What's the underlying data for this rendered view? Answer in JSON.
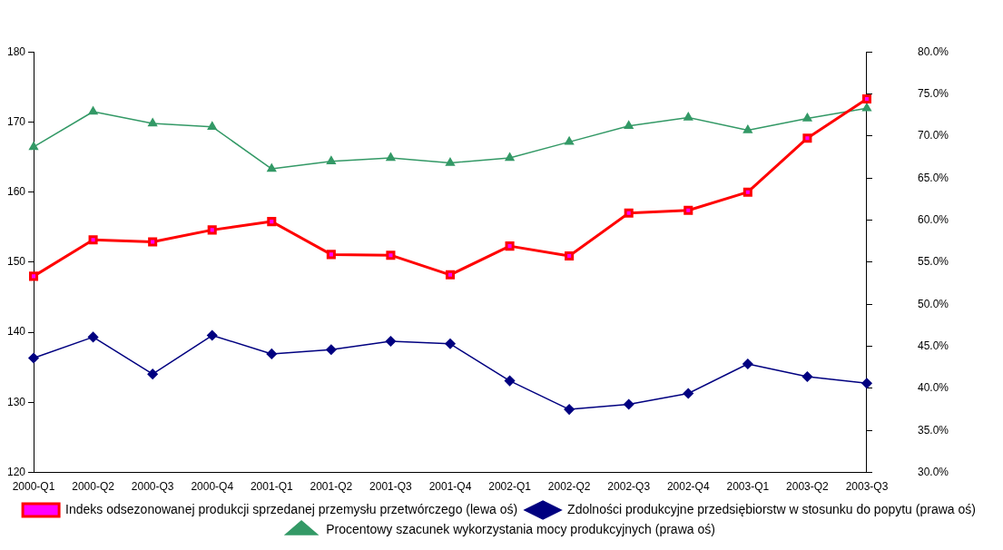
{
  "chart_data": {
    "type": "line",
    "categories": [
      "2000-Q1",
      "2000-Q2",
      "2000-Q3",
      "2000-Q4",
      "2001-Q1",
      "2001-Q2",
      "2001-Q3",
      "2001-Q4",
      "2002-Q1",
      "2002-Q2",
      "2002-Q3",
      "2002-Q4",
      "2003-Q1",
      "2003-Q2",
      "2003-Q3"
    ],
    "series": [
      {
        "name": "Indeks odsezonowanej produkcji sprzedanej przemysłu przetwórczego (lewa oś)",
        "color": "#ff0000",
        "marker": "square",
        "values": [
          148.0,
          153.2,
          152.9,
          154.6,
          155.8,
          151.1,
          151.0,
          148.2,
          152.3,
          150.9,
          157.0,
          157.4,
          160.0,
          167.7,
          173.3
        ]
      },
      {
        "name": "Zdolności produkcyjne przedsiębiorstw w stosunku do popytu (prawa oś)",
        "color": "#000080",
        "marker": "diamond",
        "axis": "y2",
        "values": [
          43.6,
          46.1,
          41.7,
          46.3,
          44.1,
          44.6,
          45.6,
          45.3,
          40.9,
          37.5,
          38.1,
          39.4,
          42.9,
          41.4,
          40.6
        ]
      },
      {
        "name": "Procentowy szacunek wykorzystania mocy produkcyjnych (prawa oś)",
        "color": "#339966",
        "marker": "triangle",
        "axis": "y2",
        "values": [
          68.7,
          72.9,
          71.5,
          71.1,
          66.1,
          67.0,
          67.4,
          66.8,
          67.4,
          69.3,
          71.2,
          72.2,
          70.7,
          72.1,
          73.3
        ]
      }
    ],
    "ylim": [
      120,
      180
    ],
    "yticks": [
      120,
      130,
      140,
      150,
      160,
      170,
      180
    ],
    "y2lim": [
      30,
      80
    ],
    "y2ticks": [
      {
        "value": 30,
        "label": "30.0%"
      },
      {
        "value": 35,
        "label": "35.0%"
      },
      {
        "value": 40,
        "label": "40.0%"
      },
      {
        "value": 45,
        "label": "45.0%"
      },
      {
        "value": 50,
        "label": "50.0%"
      },
      {
        "value": 55,
        "label": "55.0%"
      },
      {
        "value": 60,
        "label": "60.0%"
      },
      {
        "value": 65,
        "label": "65.0%"
      },
      {
        "value": 70,
        "label": "70.0%"
      },
      {
        "value": 75,
        "label": "75.0%"
      },
      {
        "value": 80,
        "label": "80.0%"
      }
    ],
    "grid": false,
    "legend": "bottom",
    "line_style": "solid"
  }
}
